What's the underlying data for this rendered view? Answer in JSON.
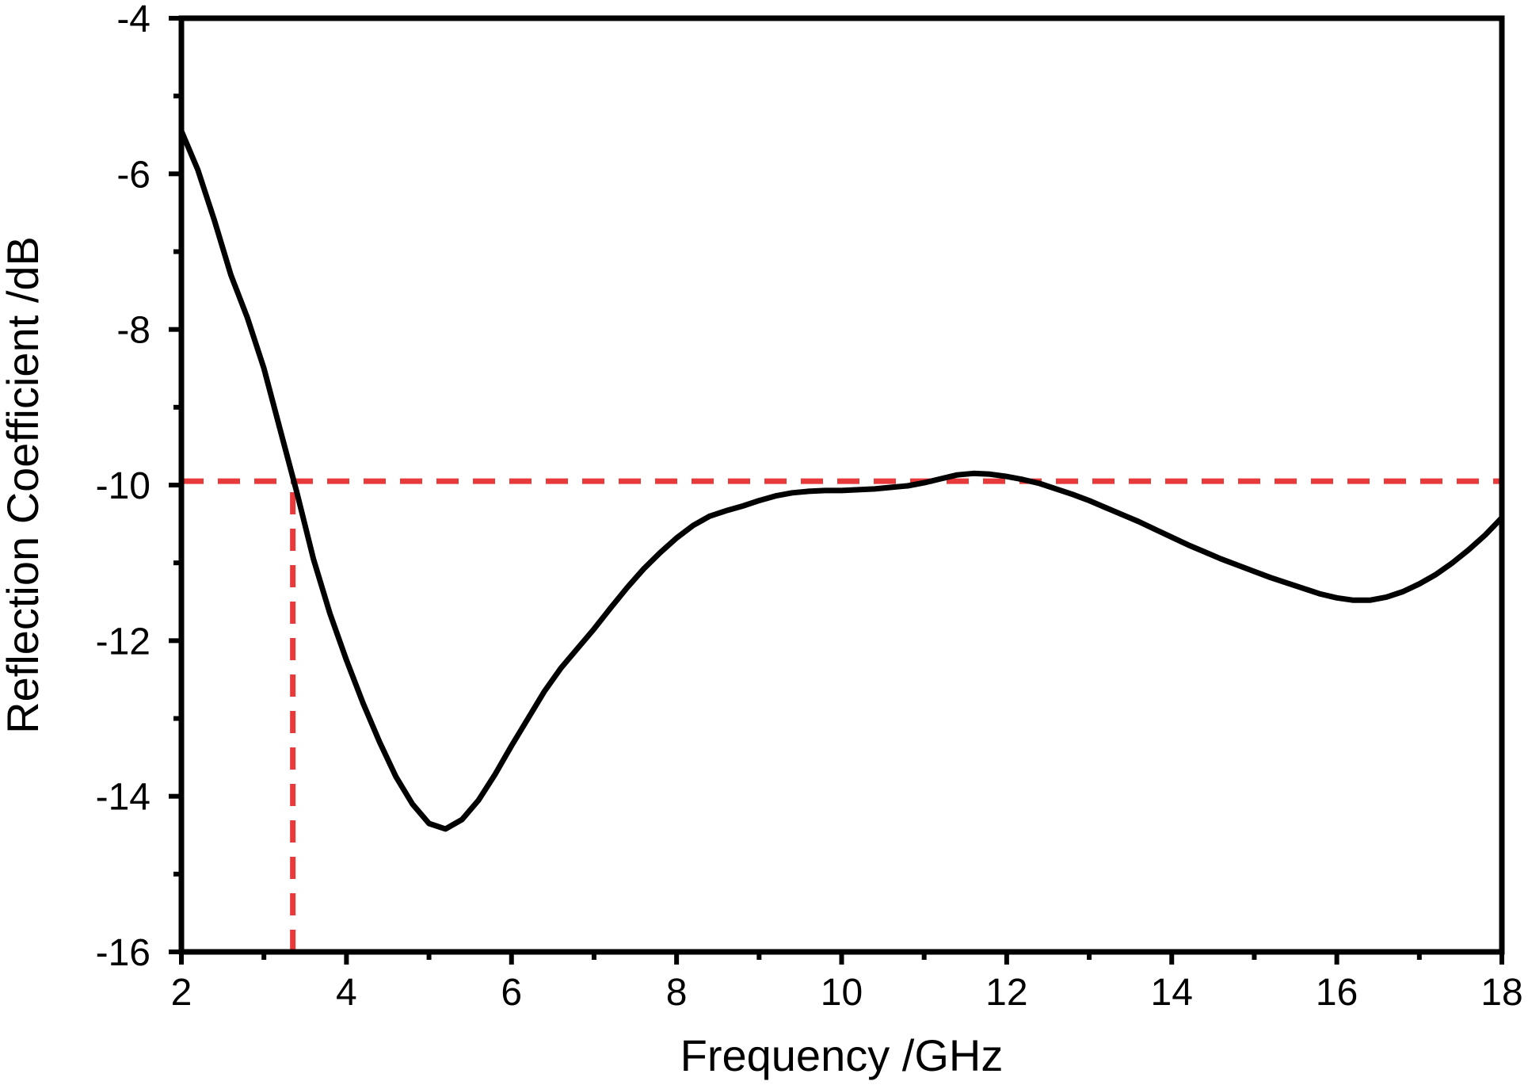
{
  "chart_data": {
    "type": "line",
    "xlabel": "Frequency /GHz",
    "ylabel": "Reflection Coefficient /dB",
    "xlim": [
      2,
      18
    ],
    "ylim": [
      -16,
      -4
    ],
    "x_ticks": [
      2,
      4,
      6,
      8,
      10,
      12,
      14,
      16,
      18
    ],
    "x_tick_labels": [
      "2",
      "4",
      "6",
      "8",
      "10",
      "12",
      "14",
      "16",
      "18"
    ],
    "y_ticks": [
      -16,
      -14,
      -12,
      -10,
      -8,
      -6,
      -4
    ],
    "y_tick_labels": [
      "-16",
      "-14",
      "-12",
      "-10",
      "-8",
      "-6",
      "-4"
    ],
    "grid": false,
    "series": [
      {
        "color": "#000000",
        "points": [
          [
            2.0,
            -5.45
          ],
          [
            2.2,
            -5.95
          ],
          [
            2.4,
            -6.6
          ],
          [
            2.6,
            -7.3
          ],
          [
            2.8,
            -7.85
          ],
          [
            3.0,
            -8.5
          ],
          [
            3.2,
            -9.3
          ],
          [
            3.4,
            -10.1
          ],
          [
            3.6,
            -10.95
          ],
          [
            3.8,
            -11.65
          ],
          [
            4.0,
            -12.25
          ],
          [
            4.2,
            -12.8
          ],
          [
            4.4,
            -13.3
          ],
          [
            4.6,
            -13.75
          ],
          [
            4.8,
            -14.1
          ],
          [
            5.0,
            -14.35
          ],
          [
            5.2,
            -14.42
          ],
          [
            5.4,
            -14.3
          ],
          [
            5.6,
            -14.05
          ],
          [
            5.8,
            -13.72
          ],
          [
            6.0,
            -13.35
          ],
          [
            6.2,
            -13.0
          ],
          [
            6.4,
            -12.65
          ],
          [
            6.6,
            -12.35
          ],
          [
            6.8,
            -12.1
          ],
          [
            7.0,
            -11.85
          ],
          [
            7.2,
            -11.58
          ],
          [
            7.4,
            -11.32
          ],
          [
            7.6,
            -11.08
          ],
          [
            7.8,
            -10.87
          ],
          [
            8.0,
            -10.68
          ],
          [
            8.2,
            -10.52
          ],
          [
            8.4,
            -10.4
          ],
          [
            8.6,
            -10.33
          ],
          [
            8.8,
            -10.27
          ],
          [
            9.0,
            -10.2
          ],
          [
            9.2,
            -10.14
          ],
          [
            9.4,
            -10.1
          ],
          [
            9.6,
            -10.08
          ],
          [
            9.8,
            -10.07
          ],
          [
            10.0,
            -10.07
          ],
          [
            10.2,
            -10.06
          ],
          [
            10.4,
            -10.05
          ],
          [
            10.6,
            -10.03
          ],
          [
            10.8,
            -10.01
          ],
          [
            11.0,
            -9.97
          ],
          [
            11.2,
            -9.92
          ],
          [
            11.4,
            -9.87
          ],
          [
            11.6,
            -9.85
          ],
          [
            11.8,
            -9.86
          ],
          [
            12.0,
            -9.89
          ],
          [
            12.2,
            -9.93
          ],
          [
            12.4,
            -9.98
          ],
          [
            12.6,
            -10.05
          ],
          [
            12.8,
            -10.12
          ],
          [
            13.0,
            -10.2
          ],
          [
            13.2,
            -10.29
          ],
          [
            13.4,
            -10.38
          ],
          [
            13.6,
            -10.47
          ],
          [
            13.8,
            -10.57
          ],
          [
            14.0,
            -10.67
          ],
          [
            14.2,
            -10.77
          ],
          [
            14.4,
            -10.86
          ],
          [
            14.6,
            -10.95
          ],
          [
            14.8,
            -11.03
          ],
          [
            15.0,
            -11.11
          ],
          [
            15.2,
            -11.19
          ],
          [
            15.4,
            -11.26
          ],
          [
            15.6,
            -11.33
          ],
          [
            15.8,
            -11.4
          ],
          [
            16.0,
            -11.45
          ],
          [
            16.2,
            -11.48
          ],
          [
            16.4,
            -11.48
          ],
          [
            16.6,
            -11.44
          ],
          [
            16.8,
            -11.37
          ],
          [
            17.0,
            -11.27
          ],
          [
            17.2,
            -11.15
          ],
          [
            17.4,
            -11.0
          ],
          [
            17.6,
            -10.83
          ],
          [
            17.8,
            -10.64
          ],
          [
            18.0,
            -10.42
          ]
        ]
      }
    ],
    "reference_lines": [
      {
        "kind": "horizontal",
        "y": -9.95,
        "x_from": 2,
        "x_to": 18,
        "color": "#e8393b",
        "style": "dashed"
      },
      {
        "kind": "vertical",
        "x": 3.35,
        "y_from": -16,
        "y_to": -9.95,
        "color": "#e8393b",
        "style": "dashed"
      }
    ]
  }
}
